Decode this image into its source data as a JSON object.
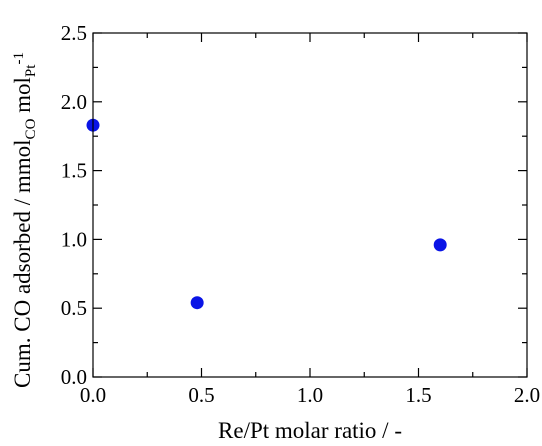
{
  "chart_data": {
    "type": "scatter",
    "xlabel": "Re/Pt molar ratio / -",
    "ylabel": {
      "main": "Cum. CO adsorbed / mmol",
      "sub1": "CO",
      "mid": " mol",
      "sub2": "Pt",
      "sup": "-1"
    },
    "xlim": [
      0.0,
      2.0
    ],
    "ylim": [
      0.0,
      2.5
    ],
    "x_ticks": [
      "0.0",
      "0.5",
      "1.0",
      "1.5",
      "2.0"
    ],
    "y_ticks": [
      "0.0",
      "0.5",
      "1.0",
      "1.5",
      "2.0",
      "2.5"
    ],
    "grid": false,
    "marker_color": "#0a14e6",
    "series": [
      {
        "x": [
          0.0,
          0.48,
          1.6
        ],
        "y": [
          1.83,
          0.54,
          0.96
        ]
      }
    ]
  }
}
